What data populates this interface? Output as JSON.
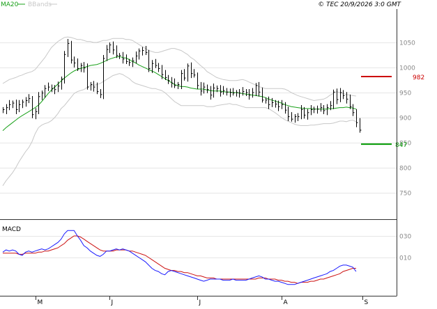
{
  "header": {
    "ma_label": "MA20",
    "bb_label": "BBands",
    "copyright": "© TEC 20/9/2026 3:0 GMT"
  },
  "colors": {
    "background": "#ffffff",
    "grid": "#e6e6e6",
    "frame": "#333333",
    "ma": "#18a018",
    "bbands": "#c8c8c8",
    "price": "#000000",
    "resistance": "#cc0000",
    "support": "#009900",
    "macd_line": "#1a1aff",
    "signal_line": "#cc1111",
    "axis_text": "#888888"
  },
  "chart_data": [
    {
      "type": "ohlc",
      "title": "",
      "y_ticks": [
        1050,
        1000,
        950,
        900,
        850,
        800,
        750
      ],
      "ylim": [
        700,
        1070
      ],
      "x_month_labels": [
        "M",
        "J",
        "J",
        "A",
        "S"
      ],
      "x_month_start_index": [
        10,
        33,
        60,
        86,
        111
      ],
      "levels": {
        "resistance": 982,
        "support": 847
      },
      "level_labels": {
        "resistance": "982",
        "support": "847"
      },
      "series": [
        {
          "name": "Price",
          "values": [
            916,
            920,
            926,
            929,
            916,
            926,
            931,
            934,
            938,
            906,
            912,
            942,
            949,
            958,
            961,
            958,
            956,
            963,
            977,
            1026,
            1048,
            1015,
            1009,
            998,
            1004,
            999,
            961,
            966,
            961,
            952,
            946,
            1018,
            1036,
            1045,
            1035,
            1024,
            1024,
            1017,
            1012,
            1010,
            1013,
            1023,
            1033,
            1034,
            1030,
            998,
            1008,
            1004,
            998,
            986,
            980,
            974,
            969,
            964,
            966,
            988,
            979,
            1003,
            988,
            985,
            964,
            953,
            961,
            956,
            945,
            959,
            958,
            951,
            954,
            951,
            950,
            949,
            950,
            949,
            952,
            950,
            945,
            950,
            964,
            951,
            935,
            935,
            926,
            930,
            927,
            922,
            926,
            915,
            902,
            897,
            902,
            902,
            916,
            905,
            910,
            916,
            917,
            917,
            920,
            914,
            920,
            924,
            951,
            936,
            950,
            944,
            937,
            922,
            910,
            890,
            875
          ]
        },
        {
          "name": "MA20",
          "values": [
            874,
            880,
            885,
            890,
            895,
            900,
            904,
            908,
            912,
            916,
            920,
            925,
            932,
            940,
            948,
            955,
            961,
            967,
            973,
            979,
            984,
            989,
            993,
            996,
            998,
            1000,
            1002,
            1004,
            1005,
            1006,
            1008,
            1011,
            1014,
            1017,
            1019,
            1021,
            1022,
            1020,
            1019,
            1016,
            1012,
            1009,
            1005,
            1002,
            999,
            996,
            993,
            990,
            986,
            982,
            978,
            974,
            970,
            966,
            964,
            962,
            962,
            961,
            959,
            958,
            957,
            957,
            957,
            955,
            954,
            953,
            953,
            953,
            952,
            951,
            951,
            950,
            950,
            949,
            948,
            947,
            946,
            945,
            944,
            943,
            942,
            940,
            937,
            935,
            933,
            931,
            929,
            926,
            924,
            922,
            921,
            920,
            919,
            918,
            918,
            918,
            917,
            917,
            917,
            917,
            917,
            918,
            918,
            919,
            920,
            920,
            921,
            920,
            919,
            917
          ]
        },
        {
          "name": "BB upper",
          "values": [
            968,
            972,
            976,
            978,
            980,
            983,
            985,
            988,
            990,
            992,
            996,
            1004,
            1012,
            1020,
            1030,
            1040,
            1046,
            1052,
            1056,
            1060,
            1061,
            1060,
            1058,
            1056,
            1056,
            1054,
            1052,
            1052,
            1050,
            1050,
            1052,
            1054,
            1054,
            1056,
            1058,
            1058,
            1058,
            1058,
            1056,
            1056,
            1054,
            1050,
            1046,
            1042,
            1038,
            1034,
            1032,
            1030,
            1030,
            1032,
            1034,
            1036,
            1038,
            1038,
            1036,
            1034,
            1030,
            1026,
            1020,
            1016,
            1010,
            1004,
            999,
            992,
            988,
            984,
            980,
            978,
            976,
            975,
            974,
            974,
            974,
            975,
            976,
            974,
            971,
            968,
            965,
            962,
            960,
            958,
            958,
            958,
            958,
            958,
            958,
            957,
            954,
            950,
            947,
            944,
            942,
            940,
            938,
            936,
            934,
            935,
            936,
            937,
            940,
            945,
            948,
            952,
            950,
            948,
            946,
            945,
            944,
            943
          ]
        },
        {
          "name": "BB lower",
          "values": [
            764,
            774,
            782,
            790,
            800,
            812,
            822,
            832,
            840,
            852,
            868,
            880,
            885,
            888,
            890,
            894,
            900,
            908,
            918,
            924,
            932,
            940,
            948,
            952,
            954,
            956,
            960,
            964,
            964,
            966,
            968,
            972,
            976,
            980,
            984,
            986,
            988,
            986,
            982,
            978,
            972,
            968,
            966,
            964,
            962,
            960,
            958,
            958,
            956,
            954,
            950,
            944,
            938,
            932,
            928,
            924,
            924,
            924,
            924,
            924,
            924,
            924,
            924,
            922,
            922,
            922,
            924,
            925,
            926,
            927,
            928,
            926,
            926,
            924,
            922,
            920,
            920,
            920,
            920,
            920,
            920,
            920,
            918,
            914,
            910,
            905,
            900,
            896,
            893,
            890,
            887,
            885,
            884,
            884,
            884,
            885,
            885,
            886,
            887,
            888,
            888,
            888,
            889,
            891,
            893,
            893,
            892,
            894,
            895,
            892
          ]
        }
      ]
    },
    {
      "type": "line",
      "title": "MACD",
      "y_ticks": [
        30,
        10
      ],
      "y_tick_labels": [
        "030",
        "010"
      ],
      "ylim": [
        -20,
        40
      ],
      "series": [
        {
          "name": "MACD",
          "values": [
            15,
            17,
            16,
            17,
            16,
            13,
            12,
            15,
            16,
            15,
            16,
            17,
            18,
            17,
            18,
            20,
            22,
            24,
            27,
            32,
            35,
            35,
            35,
            30,
            26,
            21,
            19,
            16,
            14,
            12,
            11,
            13,
            16,
            16,
            17,
            18,
            17,
            18,
            17,
            16,
            14,
            12,
            10,
            8,
            6,
            3,
            0,
            -2,
            -3,
            -5,
            -6,
            -3,
            -2,
            -3,
            -4,
            -5,
            -6,
            -7,
            -8,
            -9,
            -10,
            -11,
            -12,
            -11,
            -10,
            -10,
            -10,
            -10,
            -11,
            -11,
            -11,
            -10,
            -11,
            -11,
            -11,
            -11,
            -10,
            -9,
            -8,
            -7,
            -8,
            -10,
            -10,
            -11,
            -12,
            -12,
            -13,
            -14,
            -15,
            -15,
            -15,
            -14,
            -13,
            -12,
            -11,
            -10,
            -9,
            -8,
            -7,
            -6,
            -5,
            -3,
            -2,
            0,
            2,
            3,
            3,
            2,
            1,
            -3
          ]
        },
        {
          "name": "Signal",
          "values": [
            14,
            14,
            14,
            14,
            14,
            13,
            13,
            14,
            14,
            14,
            14,
            15,
            15,
            16,
            16,
            17,
            18,
            19,
            21,
            23,
            26,
            28,
            30,
            30,
            29,
            27,
            25,
            23,
            21,
            19,
            17,
            16,
            16,
            16,
            16,
            17,
            17,
            17,
            17,
            16,
            16,
            15,
            14,
            13,
            12,
            10,
            8,
            6,
            4,
            2,
            0,
            -1,
            -2,
            -2,
            -3,
            -3,
            -4,
            -4,
            -5,
            -6,
            -7,
            -7,
            -8,
            -9,
            -9,
            -9,
            -10,
            -10,
            -10,
            -10,
            -10,
            -10,
            -10,
            -10,
            -10,
            -10,
            -10,
            -10,
            -10,
            -9,
            -9,
            -9,
            -10,
            -10,
            -10,
            -11,
            -11,
            -12,
            -12,
            -13,
            -13,
            -14,
            -13,
            -13,
            -13,
            -12,
            -12,
            -11,
            -10,
            -10,
            -9,
            -8,
            -7,
            -6,
            -5,
            -3,
            -2,
            -1,
            0,
            0
          ]
        }
      ]
    }
  ]
}
